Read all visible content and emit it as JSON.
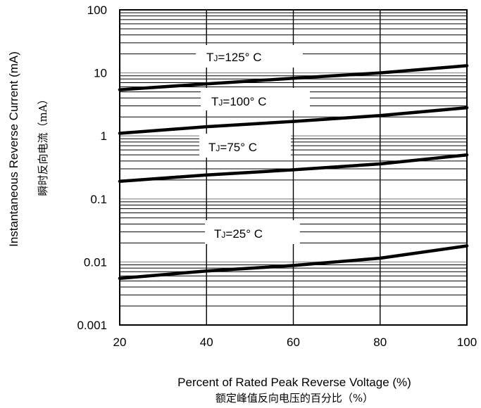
{
  "chart_data": {
    "type": "line",
    "xlabel": "Percent of Rated Peak Reverse Voltage (%)",
    "xlabel_cn": "额定峰值反向电压的百分比（%）",
    "ylabel": "Instantaneous Reverse Current (mA)",
    "ylabel_cn": "瞬时反向电流（mA）",
    "yscale": "log",
    "xlim": [
      20,
      100
    ],
    "ylim": [
      0.001,
      100
    ],
    "x_ticks": [
      20,
      40,
      60,
      80,
      100
    ],
    "x_tick_labels": [
      "20",
      "40",
      "60",
      "80",
      "100"
    ],
    "y_ticks": [
      0.001,
      0.01,
      0.1,
      1,
      10,
      100
    ],
    "y_tick_labels": [
      "0.001",
      "0.01",
      "0.1",
      "1",
      "10",
      "100"
    ],
    "grid": true,
    "series": [
      {
        "name": "TJ=125° C",
        "label_main": "T",
        "label_sub": "J",
        "label_rest": "=125° C",
        "x": [
          20,
          40,
          60,
          80,
          100
        ],
        "y": [
          5.4,
          6.7,
          8.2,
          10,
          13
        ]
      },
      {
        "name": "TJ=100° C",
        "label_main": "T",
        "label_sub": "J",
        "label_rest": "=100° C",
        "x": [
          20,
          40,
          60,
          80,
          100
        ],
        "y": [
          1.1,
          1.4,
          1.7,
          2.1,
          2.8
        ]
      },
      {
        "name": "TJ=75° C",
        "label_main": "T",
        "label_sub": "J",
        "label_rest": "=75° C",
        "x": [
          20,
          40,
          60,
          80,
          100
        ],
        "y": [
          0.19,
          0.24,
          0.29,
          0.36,
          0.5
        ]
      },
      {
        "name": "TJ=25° C",
        "label_main": "T",
        "label_sub": "J",
        "label_rest": "=25° C",
        "x": [
          20,
          40,
          60,
          80,
          100
        ],
        "y": [
          0.0055,
          0.0072,
          0.0088,
          0.0115,
          0.018
        ]
      }
    ]
  }
}
